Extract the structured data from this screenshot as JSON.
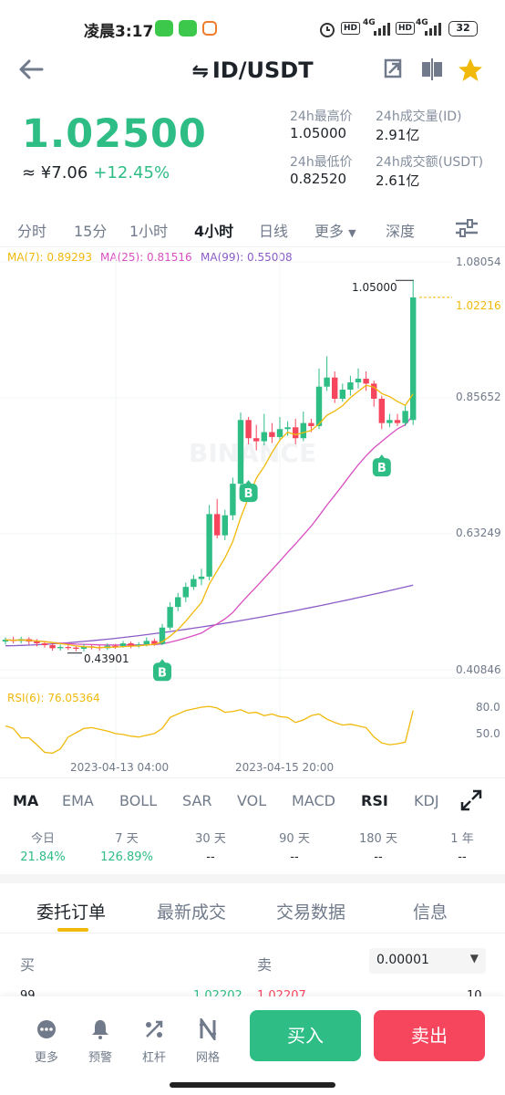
{
  "status": {
    "time": "凌晨3:17",
    "net1": "4G",
    "net2": "4G",
    "hd": "HD",
    "battery": "32"
  },
  "header": {
    "swap_icon": "⇋",
    "pair": "ID/USDT"
  },
  "price": {
    "last": "1.02500",
    "cny": "≈ ¥7.06",
    "change": "+12.45%",
    "high_label": "24h最高价",
    "high": "1.05000",
    "low_label": "24h最低价",
    "low": "0.82520",
    "vol_label": "24h成交量(ID)",
    "vol": "2.91亿",
    "amt_label": "24h成交额(USDT)",
    "amt": "2.61亿"
  },
  "intervals": [
    "分时",
    "15分",
    "1小时",
    "4小时",
    "日线",
    "更多",
    "深度"
  ],
  "active_interval": "4小时",
  "chart": {
    "ma7": "MA(7): 0.89293",
    "ma25": "MA(25): 0.81516",
    "ma99": "MA(99): 0.55008",
    "price_axis": [
      "1.08054",
      "0.85652",
      "0.63249",
      "0.40846"
    ],
    "current_price_tag": "1.02216",
    "high_tag": "1.05000",
    "low_tag": "0.43901",
    "buy_marker": "B",
    "watermark": "BINANCE",
    "rsi_label": "RSI(6): 76.05364",
    "rsi_axis": [
      "80.0",
      "50.0"
    ],
    "time_axis": [
      "2023-04-13 04:00",
      "2023-04-15 20:00"
    ],
    "colors": {
      "up": "#2ebd85",
      "down": "#f6465d",
      "ma7": "#f0b90b",
      "ma25": "#d94fc1",
      "ma99": "#8a5cc6"
    }
  },
  "indicators": [
    "MA",
    "EMA",
    "BOLL",
    "SAR",
    "VOL",
    "MACD",
    "RSI",
    "KDJ"
  ],
  "active_indicators": [
    "MA",
    "RSI"
  ],
  "performance": [
    {
      "label": "今日",
      "value": "21.84%"
    },
    {
      "label": "7 天",
      "value": "126.89%"
    },
    {
      "label": "30 天",
      "value": "--"
    },
    {
      "label": "90 天",
      "value": "--"
    },
    {
      "label": "180 天",
      "value": "--"
    },
    {
      "label": "1 年",
      "value": "--"
    }
  ],
  "bottom_tabs": [
    "委托订单",
    "最新成交",
    "交易数据",
    "信息"
  ],
  "book": {
    "buy_label": "买",
    "sell_label": "卖",
    "precision": "0.00001",
    "peek_left": "99",
    "peek_bid": "1.02202",
    "peek_ask": "1.02207",
    "peek_right": "10"
  },
  "bottom_bar": {
    "items": [
      {
        "icon": "more-icon",
        "label": "更多"
      },
      {
        "icon": "bell-icon",
        "label": "预警"
      },
      {
        "icon": "leverage-icon",
        "label": "杠杆"
      },
      {
        "icon": "grid-icon",
        "label": "网格"
      }
    ],
    "buy": "买入",
    "sell": "卖出"
  }
}
